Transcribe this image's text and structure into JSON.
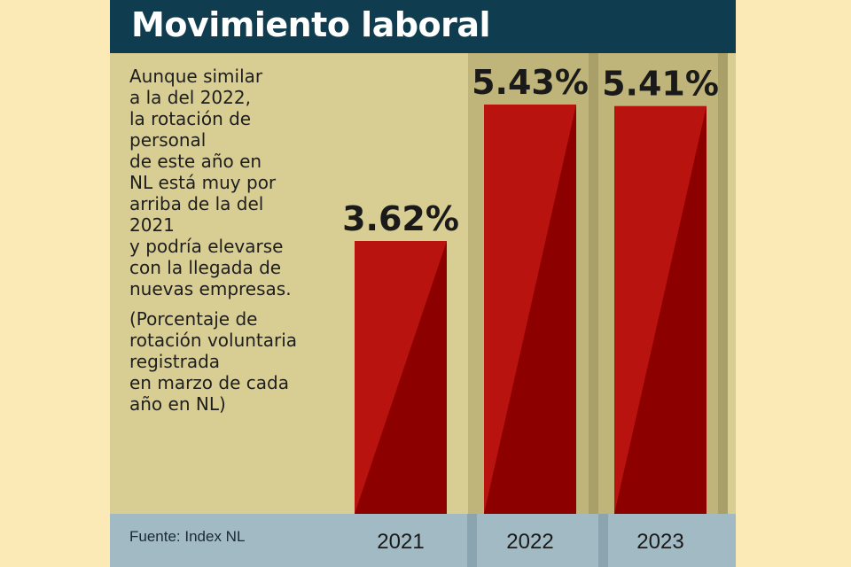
{
  "title": "Movimiento laboral",
  "description_lines": [
    "Aunque similar",
    "a la del 2022,",
    "la rotación de",
    "personal",
    "de este año en",
    "NL está muy por",
    "arriba de la del",
    "2021",
    "y podría elevarse",
    "con la llegada de",
    "nuevas empresas."
  ],
  "note_lines": [
    "(Porcentaje de",
    "rotación voluntaria",
    "registrada",
    "en marzo de cada",
    "año en NL)"
  ],
  "source": "Fuente: Index NL",
  "colors": {
    "bar_light": "#b8130f",
    "bar_dark": "#8c0000",
    "header": "#0f3d4f",
    "panel": "#d8cd92",
    "footer": "#a2bac4",
    "page": "#fbeab6"
  },
  "chart_data": {
    "type": "bar",
    "title": "Movimiento laboral",
    "categories": [
      "2021",
      "2022",
      "2023"
    ],
    "values": [
      3.62,
      5.43,
      5.41
    ],
    "value_labels": [
      "3.62%",
      "5.43%",
      "5.41%"
    ],
    "unit": "%",
    "ylim": [
      0,
      5.43
    ],
    "grid": false,
    "legend": "none"
  }
}
